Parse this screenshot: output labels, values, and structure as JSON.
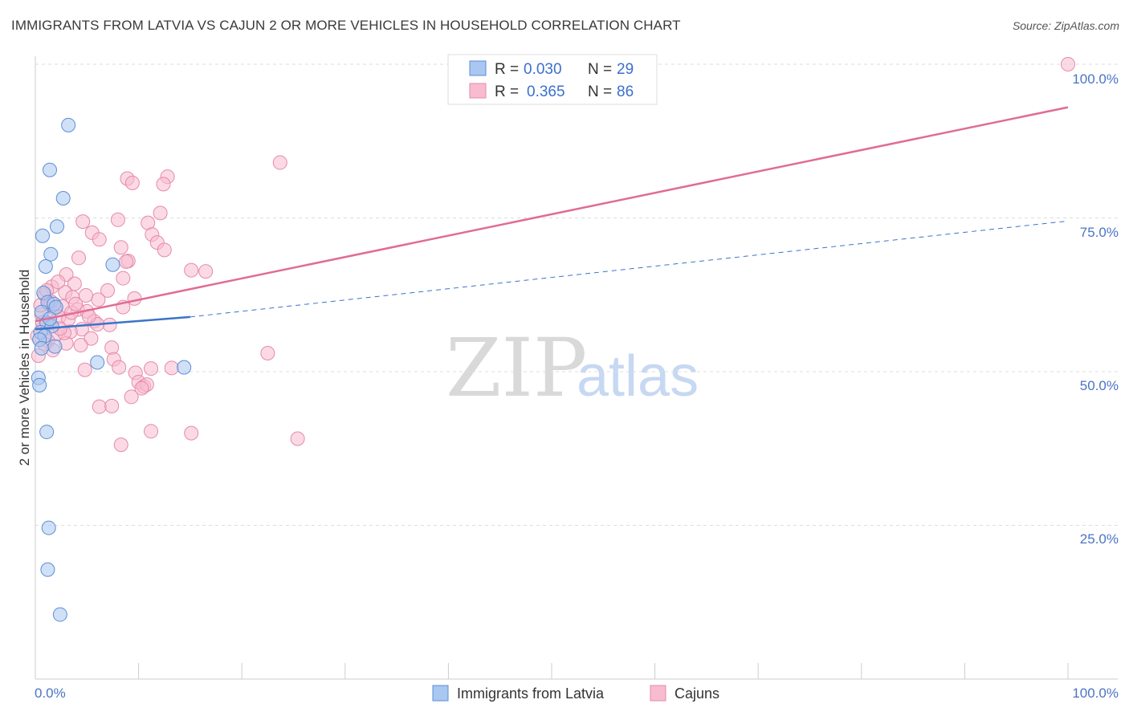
{
  "title": "IMMIGRANTS FROM LATVIA VS CAJUN 2 OR MORE VEHICLES IN HOUSEHOLD CORRELATION CHART",
  "source": "Source: ZipAtlas.com",
  "watermark": {
    "zip": "ZIP",
    "atlas": "atlas"
  },
  "colors": {
    "latvia_fill": "#a9c7f0",
    "latvia_stroke": "#5b8fd6",
    "latvia_line": "#3a74c8",
    "cajun_fill": "#f7bcd0",
    "cajun_stroke": "#e68aa8",
    "cajun_line": "#e06c96",
    "grid": "#dddddd",
    "tick_text": "#4a74c4"
  },
  "legend": {
    "rows": [
      {
        "r_label": "R =",
        "r_value": "0.030",
        "n_label": "N =",
        "n_value": "29"
      },
      {
        "r_label": "R =",
        "r_value": "0.365",
        "n_label": "N =",
        "n_value": "86"
      }
    ]
  },
  "bottom_legend": [
    {
      "label": "Immigrants from Latvia"
    },
    {
      "label": "Cajuns"
    }
  ],
  "chart_data": {
    "type": "scatter",
    "title": "IMMIGRANTS FROM LATVIA VS CAJUN 2 OR MORE VEHICLES IN HOUSEHOLD CORRELATION CHART",
    "xlabel": "",
    "ylabel": "2 or more Vehicles in Household",
    "xlim": [
      0,
      100
    ],
    "ylim": [
      0,
      100
    ],
    "x_tick_labels": [
      "0.0%",
      "100.0%"
    ],
    "y_tick_labels": [
      "100.0%",
      "75.0%",
      "50.0%",
      "25.0%"
    ],
    "y_ticks": [
      100,
      75,
      50,
      25
    ],
    "series": [
      {
        "name": "Immigrants from Latvia",
        "r": 0.03,
        "n": 29,
        "trend_solid": [
          [
            0,
            56.9
          ],
          [
            15,
            58.9
          ]
        ],
        "trend_dashed": [
          [
            15,
            58.9
          ],
          [
            100,
            74.5
          ]
        ],
        "points": [
          [
            3.2,
            90.1
          ],
          [
            1.4,
            82.8
          ],
          [
            2.7,
            78.2
          ],
          [
            2.1,
            73.6
          ],
          [
            0.7,
            72.1
          ],
          [
            1.5,
            69.1
          ],
          [
            1.0,
            67.1
          ],
          [
            7.5,
            67.4
          ],
          [
            0.8,
            62.8
          ],
          [
            1.2,
            61.3
          ],
          [
            1.8,
            61.0
          ],
          [
            2.0,
            60.5
          ],
          [
            0.6,
            59.7
          ],
          [
            1.1,
            57.9
          ],
          [
            1.6,
            57.4
          ],
          [
            0.5,
            56.4
          ],
          [
            0.9,
            55.8
          ],
          [
            0.4,
            55.2
          ],
          [
            1.9,
            54.1
          ],
          [
            6.0,
            51.5
          ],
          [
            14.4,
            50.7
          ],
          [
            0.3,
            49.0
          ],
          [
            0.4,
            47.8
          ],
          [
            1.1,
            40.2
          ],
          [
            1.3,
            24.6
          ],
          [
            1.2,
            17.8
          ],
          [
            2.4,
            10.5
          ],
          [
            0.6,
            53.8
          ],
          [
            1.4,
            58.6
          ]
        ]
      },
      {
        "name": "Cajuns",
        "r": 0.365,
        "n": 86,
        "trend": [
          [
            0,
            58.2
          ],
          [
            100,
            93.0
          ]
        ],
        "points": [
          [
            100,
            100.0
          ],
          [
            23.7,
            84.0
          ],
          [
            8.9,
            81.4
          ],
          [
            12.8,
            81.7
          ],
          [
            9.4,
            80.7
          ],
          [
            12.4,
            80.5
          ],
          [
            12.1,
            75.8
          ],
          [
            4.6,
            74.4
          ],
          [
            8.0,
            74.7
          ],
          [
            10.9,
            74.2
          ],
          [
            5.5,
            72.6
          ],
          [
            11.3,
            72.3
          ],
          [
            6.2,
            71.5
          ],
          [
            11.8,
            71.0
          ],
          [
            8.3,
            70.2
          ],
          [
            12.5,
            69.8
          ],
          [
            4.2,
            68.5
          ],
          [
            9.0,
            68.0
          ],
          [
            8.8,
            67.9
          ],
          [
            15.1,
            66.5
          ],
          [
            16.5,
            66.3
          ],
          [
            3.0,
            65.8
          ],
          [
            8.5,
            65.2
          ],
          [
            3.8,
            64.3
          ],
          [
            1.6,
            63.8
          ],
          [
            7.0,
            63.2
          ],
          [
            2.9,
            62.9
          ],
          [
            0.9,
            62.5
          ],
          [
            3.6,
            62.1
          ],
          [
            6.1,
            61.7
          ],
          [
            9.6,
            61.9
          ],
          [
            1.3,
            61.0
          ],
          [
            2.6,
            60.6
          ],
          [
            1.9,
            60.3
          ],
          [
            4.1,
            60.1
          ],
          [
            8.5,
            60.5
          ],
          [
            5.0,
            59.8
          ],
          [
            0.6,
            59.3
          ],
          [
            2.3,
            58.9
          ],
          [
            3.2,
            58.5
          ],
          [
            5.7,
            58.2
          ],
          [
            1.4,
            57.9
          ],
          [
            7.2,
            57.6
          ],
          [
            0.8,
            57.2
          ],
          [
            4.5,
            56.9
          ],
          [
            3.4,
            56.5
          ],
          [
            2.0,
            56.1
          ],
          [
            5.4,
            55.4
          ],
          [
            1.2,
            55.0
          ],
          [
            3.0,
            54.6
          ],
          [
            4.4,
            54.3
          ],
          [
            7.4,
            53.9
          ],
          [
            1.7,
            53.5
          ],
          [
            22.5,
            53.0
          ],
          [
            0.3,
            52.6
          ],
          [
            7.6,
            52.0
          ],
          [
            8.1,
            50.7
          ],
          [
            11.2,
            50.5
          ],
          [
            13.2,
            50.6
          ],
          [
            4.8,
            50.3
          ],
          [
            9.7,
            49.8
          ],
          [
            10.0,
            48.3
          ],
          [
            10.5,
            47.6
          ],
          [
            10.8,
            47.9
          ],
          [
            10.3,
            47.3
          ],
          [
            9.3,
            45.9
          ],
          [
            6.2,
            44.3
          ],
          [
            7.4,
            44.4
          ],
          [
            11.2,
            40.3
          ],
          [
            15.1,
            40.0
          ],
          [
            8.3,
            38.1
          ],
          [
            25.4,
            39.1
          ],
          [
            0.5,
            60.8
          ],
          [
            2.2,
            64.6
          ],
          [
            0.7,
            58.0
          ],
          [
            6.0,
            57.7
          ],
          [
            1.5,
            61.4
          ],
          [
            3.5,
            59.6
          ],
          [
            0.2,
            55.8
          ],
          [
            2.8,
            56.3
          ],
          [
            4.9,
            62.4
          ],
          [
            1.1,
            63.2
          ],
          [
            5.2,
            59.0
          ],
          [
            0.9,
            54.5
          ],
          [
            3.9,
            61.0
          ],
          [
            2.4,
            57.0
          ]
        ]
      }
    ]
  }
}
